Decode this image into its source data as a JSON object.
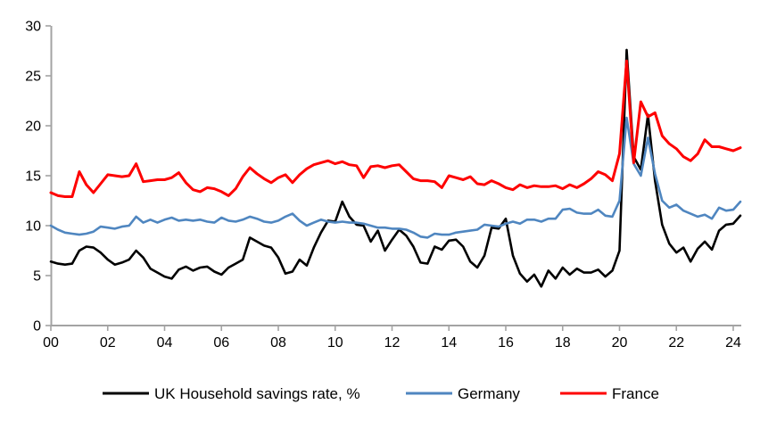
{
  "chart_data": {
    "type": "line",
    "title": "",
    "xlabel": "",
    "ylabel": "",
    "grid": false,
    "legend_position": "bottom",
    "x_start_year": 2000,
    "x_step_years": 0.25,
    "x_axis": {
      "tick_years": [
        2000,
        2002,
        2004,
        2006,
        2008,
        2010,
        2012,
        2014,
        2016,
        2018,
        2020,
        2022,
        2024
      ],
      "tick_labels": [
        "00",
        "02",
        "04",
        "06",
        "08",
        "10",
        "12",
        "14",
        "16",
        "18",
        "20",
        "22",
        "24"
      ],
      "range_years": [
        2000,
        2024.3
      ]
    },
    "y_axis": {
      "min": 0,
      "max": 30,
      "ticks": [
        0,
        5,
        10,
        15,
        20,
        25,
        30
      ],
      "tick_labels": [
        "0",
        "5",
        "10",
        "15",
        "20",
        "25",
        "30"
      ]
    },
    "axis_color": "#a3a3a3",
    "series": [
      {
        "name": "UK Household savings rate, %",
        "color": "#000000",
        "values": [
          6.4,
          6.2,
          6.1,
          6.2,
          7.5,
          7.9,
          7.8,
          7.3,
          6.6,
          6.1,
          6.3,
          6.6,
          7.5,
          6.8,
          5.7,
          5.3,
          4.9,
          4.7,
          5.6,
          5.9,
          5.5,
          5.8,
          5.9,
          5.4,
          5.1,
          5.8,
          6.2,
          6.6,
          8.8,
          8.4,
          8.0,
          7.8,
          6.8,
          5.2,
          5.4,
          6.6,
          6.0,
          7.8,
          9.3,
          10.5,
          10.4,
          12.4,
          10.9,
          10.1,
          10.0,
          8.4,
          9.5,
          7.5,
          8.6,
          9.6,
          9.0,
          7.9,
          6.3,
          6.2,
          7.9,
          7.6,
          8.5,
          8.6,
          7.9,
          6.4,
          5.8,
          7.0,
          9.8,
          9.7,
          10.7,
          7.0,
          5.2,
          4.4,
          5.1,
          3.9,
          5.5,
          4.7,
          5.8,
          5.1,
          5.7,
          5.3,
          5.3,
          5.6,
          4.9,
          5.5,
          7.5,
          27.6,
          16.9,
          15.6,
          21.1,
          14.5,
          10.1,
          8.2,
          7.3,
          7.8,
          6.4,
          7.7,
          8.4,
          7.6,
          9.5,
          10.1,
          10.2,
          11.0
        ]
      },
      {
        "name": "Germany",
        "color": "#4f86c0",
        "values": [
          10.0,
          9.6,
          9.3,
          9.2,
          9.1,
          9.2,
          9.4,
          9.9,
          9.8,
          9.7,
          9.9,
          10.0,
          10.9,
          10.3,
          10.6,
          10.3,
          10.6,
          10.8,
          10.5,
          10.6,
          10.5,
          10.6,
          10.4,
          10.3,
          10.8,
          10.5,
          10.4,
          10.6,
          10.9,
          10.7,
          10.4,
          10.3,
          10.5,
          10.9,
          11.2,
          10.5,
          10.0,
          10.3,
          10.6,
          10.4,
          10.3,
          10.4,
          10.3,
          10.3,
          10.2,
          10.0,
          9.8,
          9.8,
          9.7,
          9.7,
          9.6,
          9.3,
          8.9,
          8.8,
          9.2,
          9.1,
          9.1,
          9.3,
          9.4,
          9.5,
          9.6,
          10.1,
          10.0,
          9.9,
          10.2,
          10.4,
          10.2,
          10.6,
          10.6,
          10.4,
          10.7,
          10.7,
          11.6,
          11.7,
          11.3,
          11.2,
          11.2,
          11.6,
          11.0,
          10.9,
          12.5,
          20.8,
          16.2,
          15.0,
          18.8,
          15.2,
          12.5,
          11.8,
          12.1,
          11.5,
          11.2,
          10.9,
          11.1,
          10.7,
          11.8,
          11.5,
          11.6,
          12.4
        ]
      },
      {
        "name": "France",
        "color": "#fe0000",
        "values": [
          13.3,
          13.0,
          12.9,
          12.9,
          15.4,
          14.1,
          13.3,
          14.2,
          15.1,
          15.0,
          14.9,
          15.0,
          16.2,
          14.4,
          14.5,
          14.6,
          14.6,
          14.8,
          15.3,
          14.3,
          13.6,
          13.4,
          13.8,
          13.7,
          13.4,
          13.0,
          13.7,
          14.9,
          15.8,
          15.2,
          14.7,
          14.3,
          14.8,
          15.1,
          14.3,
          15.1,
          15.7,
          16.1,
          16.3,
          16.5,
          16.2,
          16.4,
          16.1,
          16.0,
          14.8,
          15.9,
          16.0,
          15.8,
          16.0,
          16.1,
          15.4,
          14.7,
          14.5,
          14.5,
          14.4,
          13.8,
          15.0,
          14.8,
          14.6,
          14.9,
          14.2,
          14.1,
          14.5,
          14.2,
          13.8,
          13.6,
          14.1,
          13.8,
          14.0,
          13.9,
          13.9,
          14.0,
          13.7,
          14.1,
          13.8,
          14.2,
          14.7,
          15.4,
          15.1,
          14.5,
          17.2,
          26.5,
          16.3,
          22.4,
          20.9,
          21.3,
          19.0,
          18.2,
          17.7,
          16.9,
          16.5,
          17.2,
          18.6,
          17.9,
          17.9,
          17.7,
          17.5,
          17.8
        ]
      }
    ]
  },
  "legend": {
    "items": [
      {
        "label": "UK Household savings rate, %"
      },
      {
        "label": "Germany"
      },
      {
        "label": "France"
      }
    ]
  }
}
